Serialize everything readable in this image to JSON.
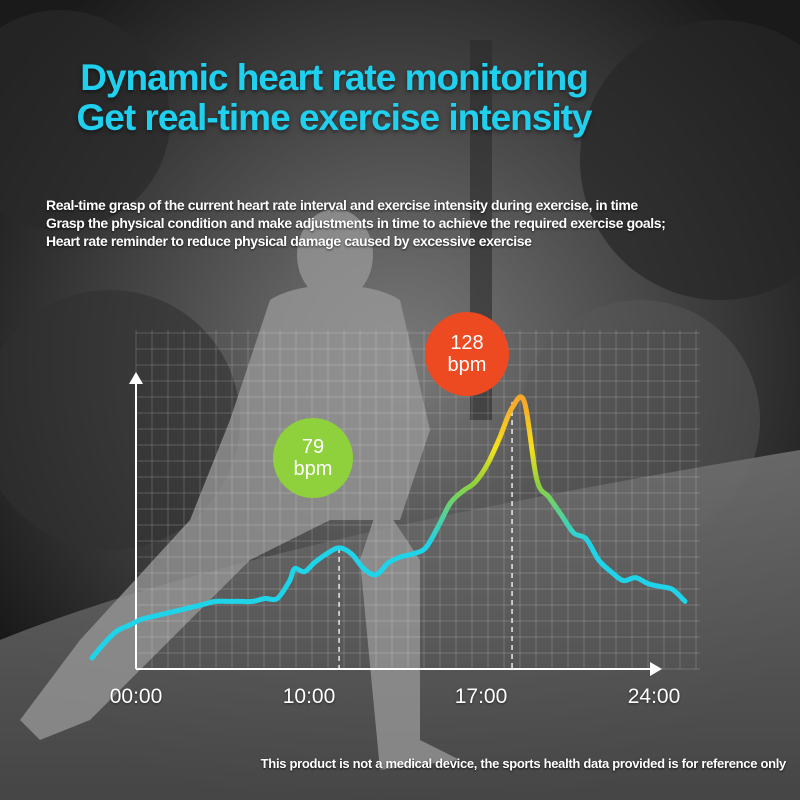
{
  "headline": {
    "line1": "Dynamic heart rate monitoring",
    "line2": "Get real-time exercise intensity"
  },
  "description": {
    "line1": "Real-time grasp of the current heart rate interval and exercise intensity during exercise, in time",
    "line2": "Grasp the physical condition and make adjustments in time to achieve the required exercise goals;",
    "line3": "Heart rate reminder to reduce physical damage caused by excessive exercise"
  },
  "disclaimer": "This product is not a medical device, the sports health data provided is for reference only",
  "colors": {
    "headline": "#1fd0ef",
    "line_low": "#1fd3e8",
    "line_mid": "#8fd13c",
    "line_high": "#f7a82a",
    "badge_low": "#8fd13c",
    "badge_high": "#ee4a22"
  },
  "chart_data": {
    "type": "line",
    "title": "",
    "xlabel": "",
    "ylabel": "",
    "x_ticks": [
      "00:00",
      "10:00",
      "17:00",
      "24:00"
    ],
    "xlim": [
      0,
      24
    ],
    "ylim": [
      40,
      140
    ],
    "grid": true,
    "series": [
      {
        "x": [
          0,
          0.5,
          1,
          1.5,
          2,
          2.5,
          3,
          3.5,
          4,
          4.5,
          5,
          5.5,
          6,
          6.5,
          7,
          7.5,
          8,
          8.2,
          8.6,
          9,
          9.5,
          10,
          10.5,
          11,
          11.5,
          12,
          12.5,
          13,
          13.5,
          14,
          14.5,
          15,
          15.5,
          16,
          16.5,
          17,
          17.5,
          18,
          18.5,
          19,
          19.5,
          20,
          20.5,
          21,
          21.5,
          22,
          22.5,
          23,
          23.5,
          24
        ],
        "values": [
          42,
          47,
          51,
          53,
          55,
          56,
          57,
          58,
          59,
          60,
          61,
          61,
          61,
          61,
          62,
          62,
          68,
          72,
          71,
          74,
          77,
          79,
          77,
          72,
          70,
          74,
          76,
          77,
          79,
          86,
          94,
          98,
          101,
          107,
          116,
          126,
          128,
          102,
          96,
          90,
          84,
          82,
          75,
          71,
          68,
          69,
          67,
          66,
          65,
          61
        ]
      }
    ],
    "annotations": [
      {
        "x": 10,
        "y": 79,
        "value": "79",
        "unit": "bpm"
      },
      {
        "x": 17,
        "y": 128,
        "value": "128",
        "unit": "bpm"
      }
    ]
  }
}
